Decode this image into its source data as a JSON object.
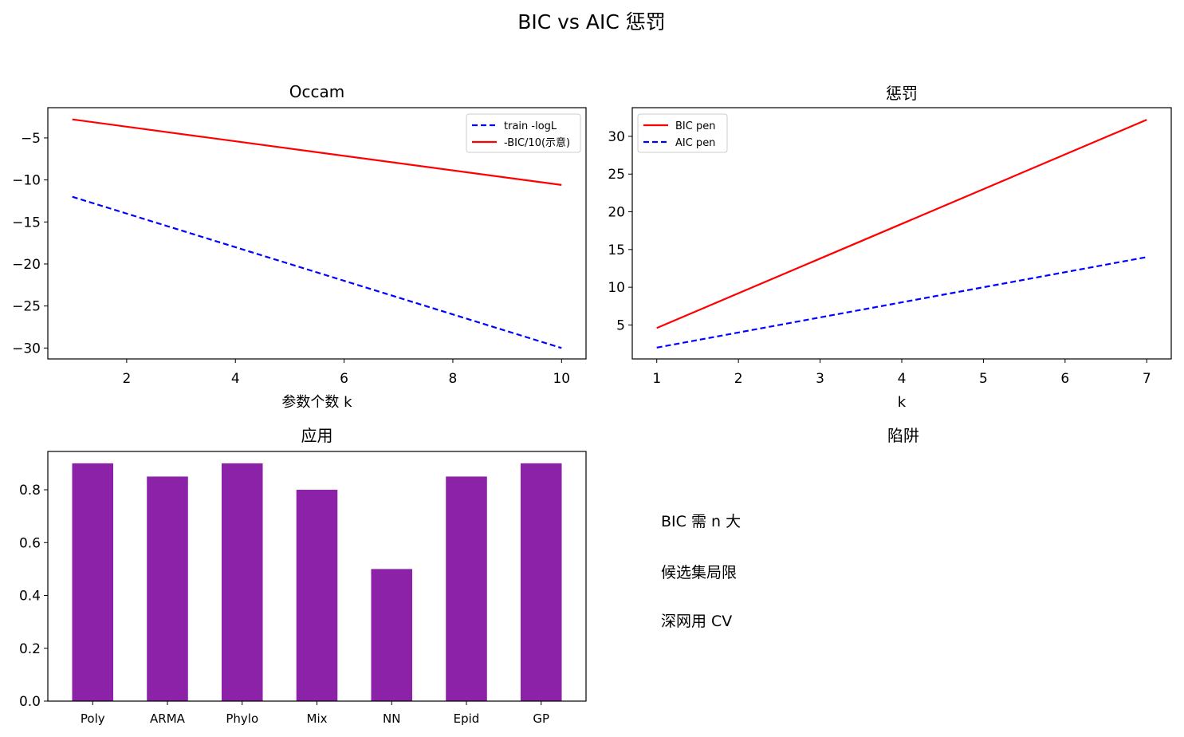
{
  "figure": {
    "title": "BIC vs AIC 惩罚"
  },
  "chart_data": [
    {
      "type": "line",
      "title": "Occam",
      "xlabel": "参数个数 k",
      "ylabel": "",
      "xlim": [
        0.55,
        10.45
      ],
      "ylim": [
        -31.3,
        -1.4
      ],
      "xticks": [
        2,
        4,
        6,
        8,
        10
      ],
      "yticks": [
        -5,
        -10,
        -15,
        -20,
        -25,
        -30
      ],
      "grid": false,
      "legend": "upper right",
      "series": [
        {
          "name": "train -logL",
          "color": "#0000ff",
          "style": "dashed",
          "x": [
            1,
            10
          ],
          "y": [
            -12,
            -30
          ]
        },
        {
          "name": "-BIC/10(示意)",
          "color": "#ff0000",
          "style": "solid",
          "x": [
            1,
            10
          ],
          "y": [
            -2.8,
            -10.6
          ]
        }
      ]
    },
    {
      "type": "line",
      "title": "惩罚",
      "xlabel": "k",
      "ylabel": "",
      "xlim": [
        0.7,
        7.3
      ],
      "ylim": [
        0.5,
        33.8
      ],
      "xticks": [
        1,
        2,
        3,
        4,
        5,
        6,
        7
      ],
      "yticks": [
        5,
        10,
        15,
        20,
        25,
        30
      ],
      "grid": false,
      "legend": "upper left",
      "series": [
        {
          "name": "BIC pen",
          "color": "#ff0000",
          "style": "solid",
          "x": [
            1,
            7
          ],
          "y": [
            4.6,
            32.2
          ]
        },
        {
          "name": "AIC pen",
          "color": "#0000ff",
          "style": "dashed",
          "x": [
            1,
            7
          ],
          "y": [
            2,
            14
          ]
        }
      ]
    },
    {
      "type": "bar",
      "title": "应用",
      "xlabel": "",
      "ylabel": "",
      "ylim": [
        0,
        0.945
      ],
      "yticks": [
        "0.0",
        "0.2",
        "0.4",
        "0.6",
        "0.8"
      ],
      "grid": false,
      "color": "#8b22a8",
      "categories": [
        "Poly",
        "ARMA",
        "Phylo",
        "Mix",
        "NN",
        "Epid",
        "GP"
      ],
      "values": [
        0.9,
        0.85,
        0.9,
        0.8,
        0.5,
        0.85,
        0.9
      ]
    }
  ],
  "notes_panel": {
    "title": "陷阱",
    "lines": [
      "BIC 需 n 大",
      "候选集局限",
      "深网用 CV"
    ]
  }
}
